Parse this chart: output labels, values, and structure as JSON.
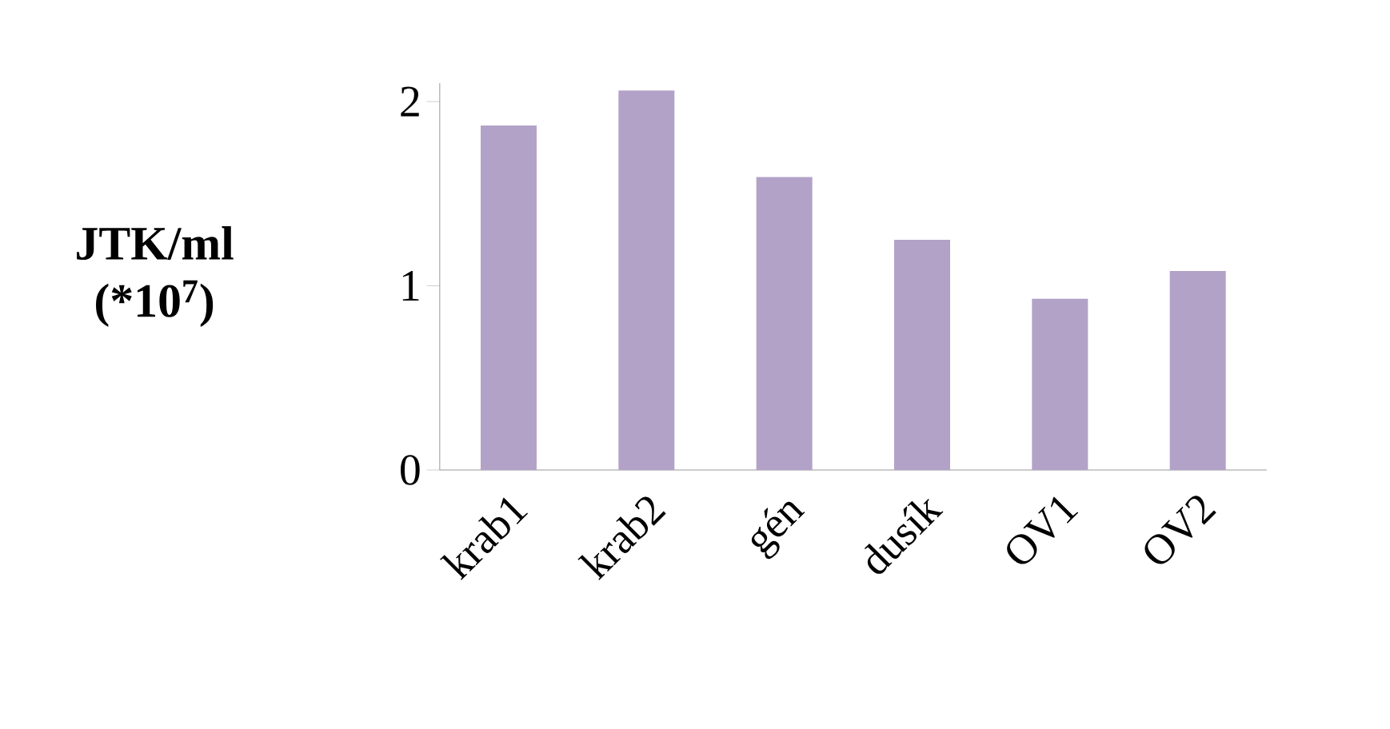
{
  "chart_data": {
    "type": "bar",
    "ylabel": "JTK/ml (*10$^{7}$)",
    "categories": [
      "krab1",
      "krab2",
      "gén",
      "dusík",
      "OV1",
      "OV2"
    ],
    "values": [
      1.87,
      2.06,
      1.59,
      1.25,
      0.93,
      1.08
    ],
    "color": "#b3a2c7",
    "ylim": [
      0,
      2.1
    ],
    "yticks": [
      0,
      1,
      2
    ]
  }
}
